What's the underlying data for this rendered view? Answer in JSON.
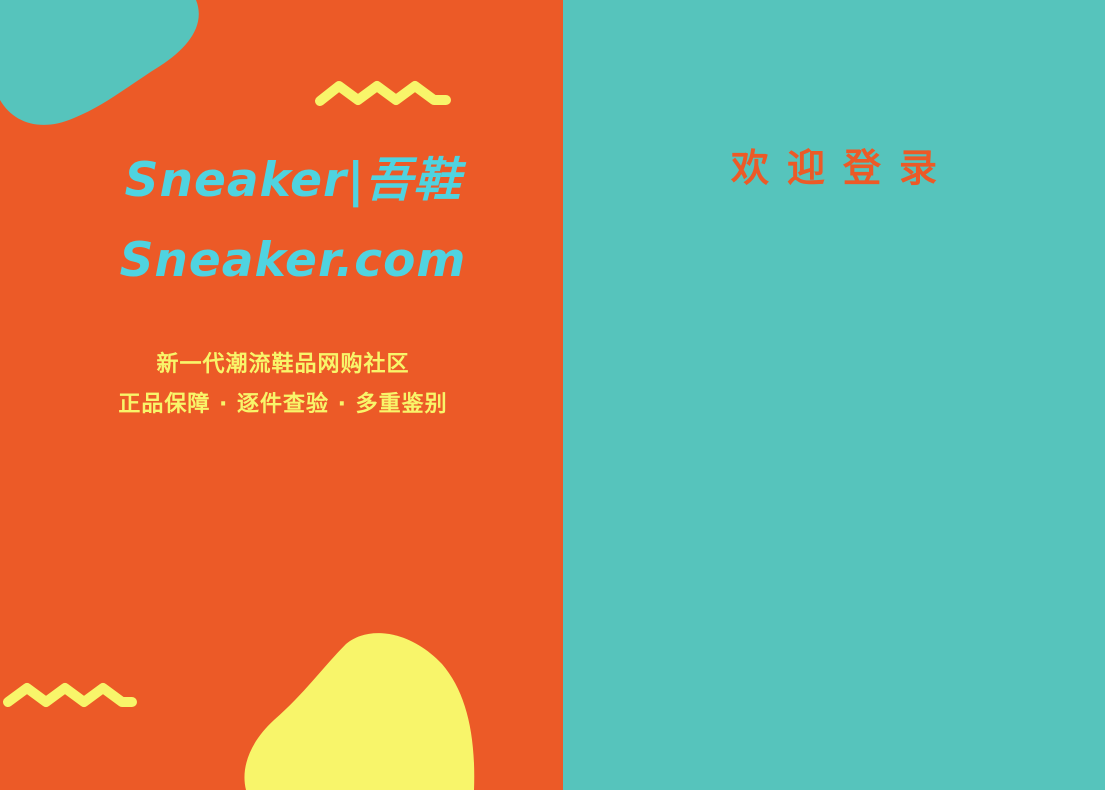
{
  "colors": {
    "left_background": "#ec5a27",
    "right_background": "#56c4bc",
    "brand_text": "#4fd3e0",
    "tagline_text": "#f8f56a",
    "welcome_text": "#ec5a27",
    "teal_blob": "#56c4bc",
    "yellow_blob": "#f8f56a",
    "zigzag": "#f8f56a"
  },
  "brand": {
    "title": "Sneaker|吾鞋",
    "domain": "Sneaker.com"
  },
  "tagline": {
    "line1": "新一代潮流鞋品网购社区",
    "line2": "正品保障 · 逐件查验 · 多重鉴别"
  },
  "login": {
    "welcome": "欢迎登录"
  },
  "decorations": {
    "top_blob": "teal-blob",
    "bottom_blob": "yellow-blob",
    "zigzags": [
      "zigzag-top",
      "zigzag-bottom"
    ]
  }
}
